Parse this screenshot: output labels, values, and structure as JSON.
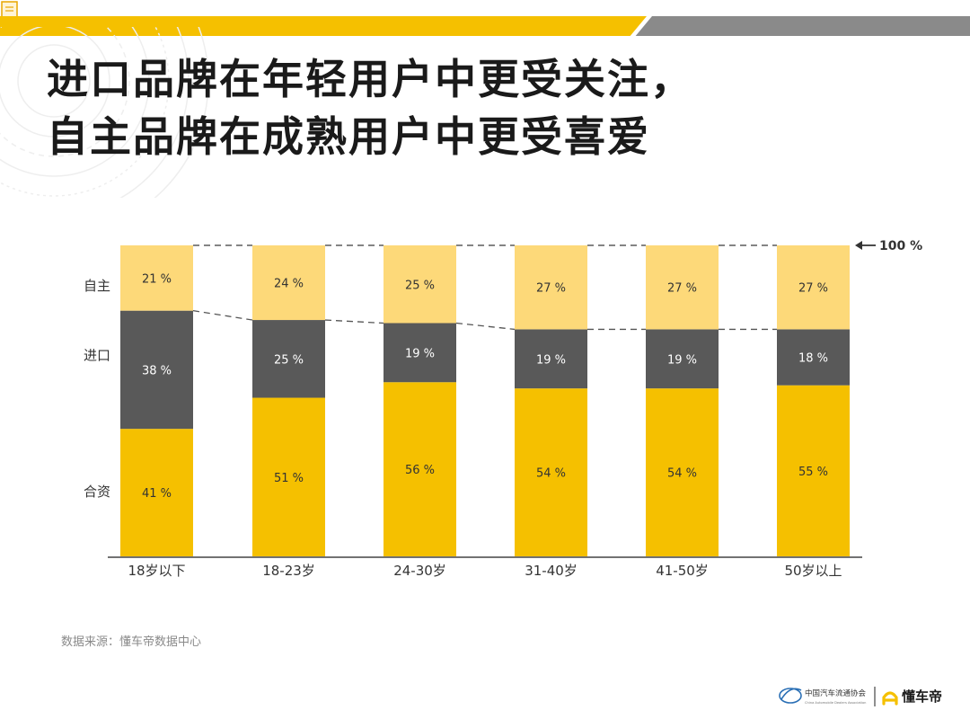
{
  "title": {
    "line1": "进口品牌在年轻用户中更受关注，",
    "line2": "自主品牌在成熟用户中更受喜爱"
  },
  "source_note": "数据来源：懂车帝数据中心",
  "footer": {
    "org_name": "中国汽车流通协会",
    "org_subtitle": "China Automobile Dealers Association",
    "brand_name": "懂车帝"
  },
  "colors": {
    "accent_yellow": "#f5c000",
    "light_yellow": "#fdd979",
    "dark_gray": "#595959",
    "bar_bg_gray": "#8a8a8a"
  },
  "chart_data": {
    "type": "bar",
    "stacked": true,
    "categories": [
      "18岁以下",
      "18-23岁",
      "24-30岁",
      "31-40岁",
      "41-50岁",
      "50岁以上"
    ],
    "series": [
      {
        "name": "合资",
        "values": [
          41,
          51,
          56,
          54,
          54,
          55
        ],
        "labels": [
          "41 %",
          "51 %",
          "56 %",
          "54 %",
          "54 %",
          "55 %"
        ],
        "color": "#f5c000"
      },
      {
        "name": "进口",
        "values": [
          38,
          25,
          19,
          19,
          19,
          18
        ],
        "labels": [
          "38 %",
          "25 %",
          "19 %",
          "19 %",
          "19 %",
          "18 %"
        ],
        "color": "#595959"
      },
      {
        "name": "自主",
        "values": [
          21,
          24,
          25,
          27,
          27,
          27
        ],
        "labels": [
          "21 %",
          "24 %",
          "25 %",
          "27 %",
          "27 %",
          "27 %"
        ],
        "color": "#fdd979"
      }
    ],
    "ylim": [
      0,
      100
    ],
    "reference_label": "100 %",
    "grid": false,
    "legend": "left"
  }
}
